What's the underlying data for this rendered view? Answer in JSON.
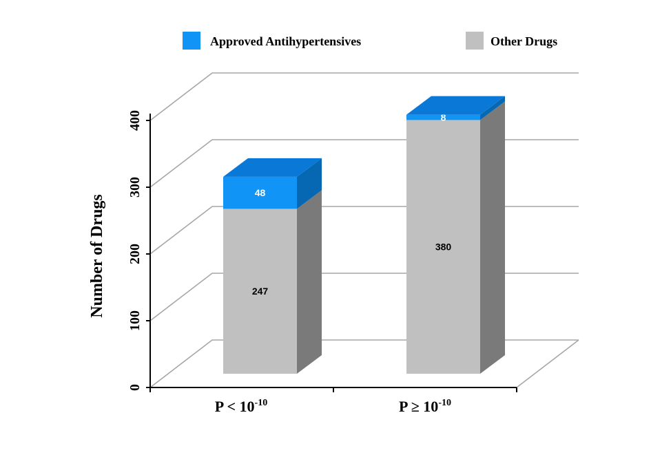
{
  "chart_data": {
    "type": "bar",
    "stacked": true,
    "three_d": true,
    "title": "",
    "xlabel": "",
    "ylabel": "Number of Drugs",
    "ylim": [
      0,
      400
    ],
    "yticks": [
      "0",
      "100",
      "200",
      "300",
      "400"
    ],
    "grid": true,
    "legend_position": "top",
    "categories": [
      {
        "base": "P < 10",
        "exp": "-10"
      },
      {
        "base": "P ≥ 10",
        "exp": "-10"
      }
    ],
    "series": [
      {
        "name": "Other Drugs",
        "values": [
          247,
          380
        ],
        "color": "#c0c0c0",
        "side_color": "#7a7a7a",
        "label_color": "#000000"
      },
      {
        "name": "Approved Antihypertensives",
        "values": [
          48,
          8
        ],
        "color": "#1094f5",
        "side_color": "#0668b3",
        "top_color": "#0a78d6",
        "label_color": "#ffffff"
      }
    ],
    "legend_order": [
      "Approved Antihypertensives",
      "Other Drugs"
    ]
  }
}
